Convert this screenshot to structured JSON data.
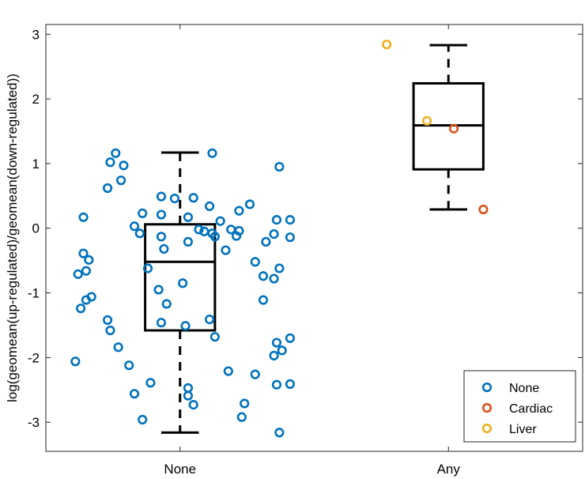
{
  "chart_data": {
    "type": "box+scatter",
    "title": "",
    "xlabel": "",
    "ylabel": "log(geomean(up-regulated)/geomean(down-regulated))",
    "categories": [
      "None",
      "Any"
    ],
    "ylim": [
      -3.45,
      3.15
    ],
    "yticks": [
      3,
      2,
      1,
      0,
      -1,
      -2,
      -3
    ],
    "ytick_labels": [
      "3",
      "2",
      "1",
      "0",
      "-1",
      "-2",
      "-3"
    ],
    "grid": false,
    "legend_position": "bottom-right",
    "colors": {
      "None": "#0072BD",
      "Cardiac": "#D95319",
      "Liver": "#EDB120",
      "box": "#000000"
    },
    "boxes": [
      {
        "category": "None",
        "whisker_low": -3.16,
        "q1": -1.58,
        "median": -0.52,
        "q3": 0.06,
        "whisker_high": 1.17
      },
      {
        "category": "Any",
        "whisker_low": 0.29,
        "q1": 0.91,
        "median": 1.59,
        "q3": 2.24,
        "whisker_high": 2.83
      }
    ],
    "series": [
      {
        "name": "None",
        "points": [
          [
            0.76,
            1.16
          ],
          [
            1.12,
            1.16
          ],
          [
            0.74,
            1.02
          ],
          [
            0.79,
            0.97
          ],
          [
            1.37,
            0.95
          ],
          [
            0.78,
            0.74
          ],
          [
            0.73,
            0.62
          ],
          [
            0.93,
            0.49
          ],
          [
            0.98,
            0.46
          ],
          [
            1.05,
            0.47
          ],
          [
            1.26,
            0.37
          ],
          [
            1.11,
            0.34
          ],
          [
            0.86,
            0.23
          ],
          [
            0.93,
            0.21
          ],
          [
            1.03,
            0.17
          ],
          [
            1.15,
            0.11
          ],
          [
            1.22,
            0.27
          ],
          [
            1.36,
            0.13
          ],
          [
            1.41,
            0.13
          ],
          [
            0.64,
            0.17
          ],
          [
            0.83,
            0.03
          ],
          [
            1.07,
            -0.02
          ],
          [
            1.09,
            -0.05
          ],
          [
            1.12,
            -0.08
          ],
          [
            1.19,
            -0.02
          ],
          [
            1.22,
            -0.04
          ],
          [
            0.85,
            -0.08
          ],
          [
            0.93,
            -0.13
          ],
          [
            1.13,
            -0.13
          ],
          [
            1.21,
            -0.12
          ],
          [
            1.35,
            -0.09
          ],
          [
            1.41,
            -0.14
          ],
          [
            1.32,
            -0.21
          ],
          [
            0.94,
            -0.32
          ],
          [
            1.03,
            -0.21
          ],
          [
            1.17,
            -0.34
          ],
          [
            0.64,
            -0.39
          ],
          [
            0.66,
            -0.49
          ],
          [
            1.28,
            -0.52
          ],
          [
            0.65,
            -0.66
          ],
          [
            0.62,
            -0.71
          ],
          [
            1.37,
            -0.62
          ],
          [
            0.88,
            -0.62
          ],
          [
            1.31,
            -0.74
          ],
          [
            1.35,
            -0.78
          ],
          [
            1.01,
            -0.85
          ],
          [
            0.92,
            -0.95
          ],
          [
            0.67,
            -1.06
          ],
          [
            0.65,
            -1.11
          ],
          [
            1.31,
            -1.11
          ],
          [
            0.95,
            -1.17
          ],
          [
            0.63,
            -1.24
          ],
          [
            0.73,
            -1.42
          ],
          [
            0.93,
            -1.46
          ],
          [
            1.02,
            -1.51
          ],
          [
            1.11,
            -1.41
          ],
          [
            0.74,
            -1.58
          ],
          [
            1.13,
            -1.68
          ],
          [
            1.36,
            -1.77
          ],
          [
            1.41,
            -1.7
          ],
          [
            1.38,
            -1.89
          ],
          [
            0.77,
            -1.84
          ],
          [
            1.35,
            -1.97
          ],
          [
            0.61,
            -2.06
          ],
          [
            0.81,
            -2.12
          ],
          [
            1.18,
            -2.21
          ],
          [
            1.28,
            -2.26
          ],
          [
            1.36,
            -2.42
          ],
          [
            1.41,
            -2.41
          ],
          [
            0.89,
            -2.39
          ],
          [
            0.83,
            -2.56
          ],
          [
            1.03,
            -2.47
          ],
          [
            1.03,
            -2.59
          ],
          [
            1.05,
            -2.73
          ],
          [
            1.24,
            -2.71
          ],
          [
            1.23,
            -2.92
          ],
          [
            0.86,
            -2.96
          ],
          [
            1.37,
            -3.16
          ]
        ]
      },
      {
        "name": "Cardiac",
        "points": [
          [
            2.02,
            1.54
          ],
          [
            2.13,
            0.29
          ]
        ]
      },
      {
        "name": "Liver",
        "points": [
          [
            1.77,
            2.84
          ],
          [
            1.92,
            1.66
          ]
        ]
      }
    ],
    "legend": [
      "None",
      "Cardiac",
      "Liver"
    ]
  }
}
